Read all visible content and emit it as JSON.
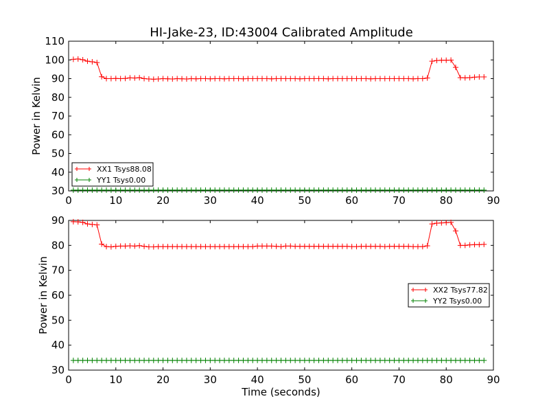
{
  "title": "HI-Jake-23, ID:43004 Calibrated Amplitude",
  "chart_data": [
    {
      "type": "line",
      "ylabel": "Power in Kelvin",
      "xlabel": "",
      "xlim": [
        0,
        90
      ],
      "ylim": [
        30,
        110
      ],
      "xticks": [
        0,
        10,
        20,
        30,
        40,
        50,
        60,
        70,
        80,
        90
      ],
      "yticks": [
        30,
        40,
        50,
        60,
        70,
        80,
        90,
        100,
        110
      ],
      "legend_position": "lower-left",
      "series": [
        {
          "name": "XX1 Tsys88.08",
          "color": "#ff0000",
          "x": [
            1,
            2,
            3,
            4,
            5,
            6,
            7,
            8,
            9,
            10,
            11,
            12,
            13,
            14,
            15,
            16,
            17,
            18,
            19,
            20,
            21,
            22,
            23,
            24,
            25,
            26,
            27,
            28,
            29,
            30,
            31,
            32,
            33,
            34,
            35,
            36,
            37,
            38,
            39,
            40,
            41,
            42,
            43,
            44,
            45,
            46,
            47,
            48,
            49,
            50,
            51,
            52,
            53,
            54,
            55,
            56,
            57,
            58,
            59,
            60,
            61,
            62,
            63,
            64,
            65,
            66,
            67,
            68,
            69,
            70,
            71,
            72,
            73,
            74,
            75,
            76,
            77,
            78,
            79,
            80,
            81,
            82,
            83,
            84,
            85,
            86,
            87,
            88
          ],
          "y": [
            100.3,
            100.5,
            100.1,
            99.3,
            99.0,
            98.6,
            91.0,
            90.0,
            90.0,
            90.1,
            90.0,
            90.1,
            90.4,
            90.3,
            90.5,
            90.0,
            89.8,
            89.7,
            89.8,
            90.0,
            89.9,
            89.8,
            90.0,
            89.9,
            89.8,
            90.0,
            89.9,
            90.0,
            90.0,
            89.9,
            90.0,
            90.0,
            89.9,
            90.0,
            90.0,
            90.0,
            89.9,
            90.0,
            90.0,
            90.0,
            90.0,
            90.0,
            89.9,
            90.0,
            90.0,
            90.0,
            90.0,
            90.0,
            89.9,
            90.0,
            90.0,
            90.0,
            90.0,
            90.0,
            89.9,
            90.0,
            90.0,
            90.0,
            90.0,
            90.0,
            90.0,
            90.0,
            90.0,
            89.9,
            90.0,
            90.0,
            90.0,
            90.0,
            90.0,
            90.0,
            90.0,
            90.0,
            89.9,
            90.0,
            90.0,
            90.3,
            99.3,
            99.7,
            99.8,
            99.8,
            99.9,
            96.0,
            90.5,
            90.4,
            90.5,
            90.8,
            90.9,
            90.9
          ]
        },
        {
          "name": "YY1 Tsys0.00",
          "color": "#008000",
          "x": [
            1,
            2,
            3,
            4,
            5,
            6,
            7,
            8,
            9,
            10,
            11,
            12,
            13,
            14,
            15,
            16,
            17,
            18,
            19,
            20,
            21,
            22,
            23,
            24,
            25,
            26,
            27,
            28,
            29,
            30,
            31,
            32,
            33,
            34,
            35,
            36,
            37,
            38,
            39,
            40,
            41,
            42,
            43,
            44,
            45,
            46,
            47,
            48,
            49,
            50,
            51,
            52,
            53,
            54,
            55,
            56,
            57,
            58,
            59,
            60,
            61,
            62,
            63,
            64,
            65,
            66,
            67,
            68,
            69,
            70,
            71,
            72,
            73,
            74,
            75,
            76,
            77,
            78,
            79,
            80,
            81,
            82,
            83,
            84,
            85,
            86,
            87,
            88
          ],
          "y": [
            30.4,
            30.4,
            30.4,
            30.4,
            30.4,
            30.4,
            30.4,
            30.4,
            30.4,
            30.4,
            30.4,
            30.4,
            30.4,
            30.4,
            30.4,
            30.4,
            30.4,
            30.4,
            30.4,
            30.4,
            30.4,
            30.4,
            30.4,
            30.4,
            30.4,
            30.4,
            30.4,
            30.4,
            30.4,
            30.4,
            30.4,
            30.4,
            30.4,
            30.4,
            30.4,
            30.4,
            30.4,
            30.4,
            30.4,
            30.4,
            30.4,
            30.4,
            30.4,
            30.4,
            30.4,
            30.4,
            30.4,
            30.4,
            30.4,
            30.4,
            30.4,
            30.4,
            30.4,
            30.4,
            30.4,
            30.4,
            30.4,
            30.4,
            30.4,
            30.4,
            30.4,
            30.4,
            30.4,
            30.4,
            30.4,
            30.4,
            30.4,
            30.4,
            30.4,
            30.4,
            30.4,
            30.4,
            30.4,
            30.4,
            30.4,
            30.4,
            30.4,
            30.4,
            30.4,
            30.4,
            30.4,
            30.4,
            30.4,
            30.4,
            30.4,
            30.4,
            30.4,
            30.4
          ]
        }
      ]
    },
    {
      "type": "line",
      "ylabel": "Power in Kelvin",
      "xlabel": "Time (seconds)",
      "xlim": [
        0,
        90
      ],
      "ylim": [
        30,
        90
      ],
      "xticks": [
        0,
        10,
        20,
        30,
        40,
        50,
        60,
        70,
        80,
        90
      ],
      "yticks": [
        30,
        40,
        50,
        60,
        70,
        80,
        90
      ],
      "legend_position": "center-right",
      "series": [
        {
          "name": "XX2 Tsys77.82",
          "color": "#ff0000",
          "x": [
            1,
            2,
            3,
            4,
            5,
            6,
            7,
            8,
            9,
            10,
            11,
            12,
            13,
            14,
            15,
            16,
            17,
            18,
            19,
            20,
            21,
            22,
            23,
            24,
            25,
            26,
            27,
            28,
            29,
            30,
            31,
            32,
            33,
            34,
            35,
            36,
            37,
            38,
            39,
            40,
            41,
            42,
            43,
            44,
            45,
            46,
            47,
            48,
            49,
            50,
            51,
            52,
            53,
            54,
            55,
            56,
            57,
            58,
            59,
            60,
            61,
            62,
            63,
            64,
            65,
            66,
            67,
            68,
            69,
            70,
            71,
            72,
            73,
            74,
            75,
            76,
            77,
            78,
            79,
            80,
            81,
            82,
            83,
            84,
            85,
            86,
            87,
            88
          ],
          "y": [
            89.5,
            89.4,
            89.2,
            88.6,
            88.4,
            88.2,
            80.5,
            79.5,
            79.4,
            79.6,
            79.7,
            79.7,
            79.8,
            79.7,
            79.9,
            79.6,
            79.4,
            79.4,
            79.5,
            79.5,
            79.5,
            79.5,
            79.5,
            79.5,
            79.5,
            79.5,
            79.5,
            79.5,
            79.5,
            79.5,
            79.5,
            79.5,
            79.5,
            79.5,
            79.5,
            79.5,
            79.5,
            79.5,
            79.5,
            79.7,
            79.7,
            79.7,
            79.7,
            79.6,
            79.5,
            79.7,
            79.7,
            79.6,
            79.6,
            79.6,
            79.6,
            79.6,
            79.6,
            79.6,
            79.6,
            79.6,
            79.6,
            79.6,
            79.6,
            79.5,
            79.5,
            79.6,
            79.6,
            79.6,
            79.6,
            79.6,
            79.5,
            79.6,
            79.6,
            79.6,
            79.6,
            79.6,
            79.5,
            79.5,
            79.5,
            79.8,
            88.6,
            88.9,
            89.0,
            89.1,
            89.2,
            85.8,
            80.0,
            80.0,
            80.2,
            80.3,
            80.3,
            80.4
          ]
        },
        {
          "name": "YY2 Tsys0.00",
          "color": "#008000",
          "x": [
            1,
            2,
            3,
            4,
            5,
            6,
            7,
            8,
            9,
            10,
            11,
            12,
            13,
            14,
            15,
            16,
            17,
            18,
            19,
            20,
            21,
            22,
            23,
            24,
            25,
            26,
            27,
            28,
            29,
            30,
            31,
            32,
            33,
            34,
            35,
            36,
            37,
            38,
            39,
            40,
            41,
            42,
            43,
            44,
            45,
            46,
            47,
            48,
            49,
            50,
            51,
            52,
            53,
            54,
            55,
            56,
            57,
            58,
            59,
            60,
            61,
            62,
            63,
            64,
            65,
            66,
            67,
            68,
            69,
            70,
            71,
            72,
            73,
            74,
            75,
            76,
            77,
            78,
            79,
            80,
            81,
            82,
            83,
            84,
            85,
            86,
            87,
            88
          ],
          "y": [
            33.9,
            33.9,
            33.9,
            33.9,
            33.9,
            33.9,
            33.9,
            33.9,
            33.9,
            33.9,
            33.9,
            33.9,
            33.9,
            33.9,
            33.9,
            33.9,
            33.9,
            33.9,
            33.9,
            33.9,
            33.9,
            33.9,
            33.9,
            33.9,
            33.9,
            33.9,
            33.9,
            33.9,
            33.9,
            33.9,
            33.9,
            33.9,
            33.9,
            33.9,
            33.9,
            33.9,
            33.9,
            33.9,
            33.9,
            33.9,
            33.9,
            33.9,
            33.9,
            33.9,
            33.9,
            33.9,
            33.9,
            33.9,
            33.9,
            33.9,
            33.9,
            33.9,
            33.9,
            33.9,
            33.9,
            33.9,
            33.9,
            33.9,
            33.9,
            33.9,
            33.9,
            33.9,
            33.9,
            33.9,
            33.9,
            33.9,
            33.9,
            33.9,
            33.9,
            33.9,
            33.9,
            33.9,
            33.9,
            33.9,
            33.9,
            33.9,
            33.9,
            33.9,
            33.9,
            33.9,
            33.9,
            33.9,
            33.9,
            33.9,
            33.9,
            33.9,
            33.9,
            33.9
          ]
        }
      ]
    }
  ]
}
